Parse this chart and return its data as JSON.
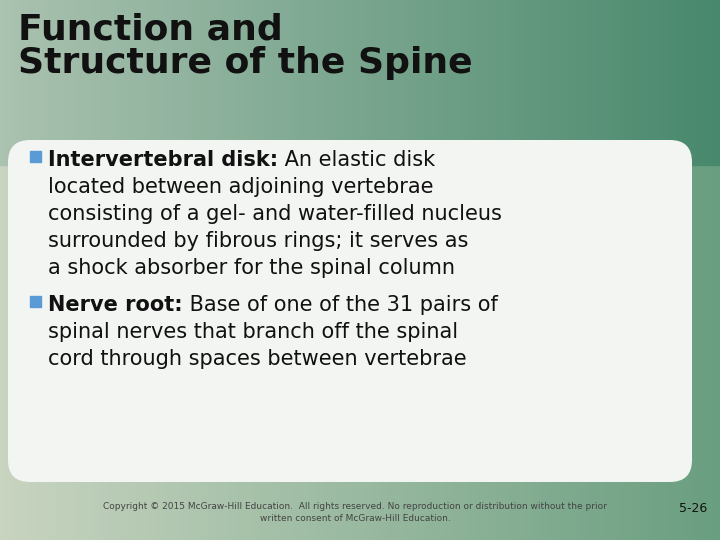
{
  "title_line1": "Function and",
  "title_line2": "Structure of the Spine",
  "bullet1_bold": "Intervertebral disk:",
  "bullet1_rest": " An elastic disk",
  "bullet1_lines": [
    "located between adjoining vertebrae",
    "consisting of a gel- and water-filled nucleus",
    "surrounded by fibrous rings; it serves as",
    "a shock absorber for the spinal column"
  ],
  "bullet2_bold": "Nerve root:",
  "bullet2_rest": " Base of one of the 31 pairs of",
  "bullet2_lines": [
    "spinal nerves that branch off the spinal",
    "cord through spaces between vertebrae"
  ],
  "footer_text": "Copyright © 2015 McGraw-Hill Education.  All rights reserved. No reproduction or distribution without the prior\nwritten consent of McGraw-Hill Education.",
  "page_number": "5-26",
  "title_color": "#111111",
  "text_color": "#111111",
  "bullet_sq_color": "#5b9bd5",
  "content_box_color": "#f2f5f2",
  "footer_color": "#444444"
}
